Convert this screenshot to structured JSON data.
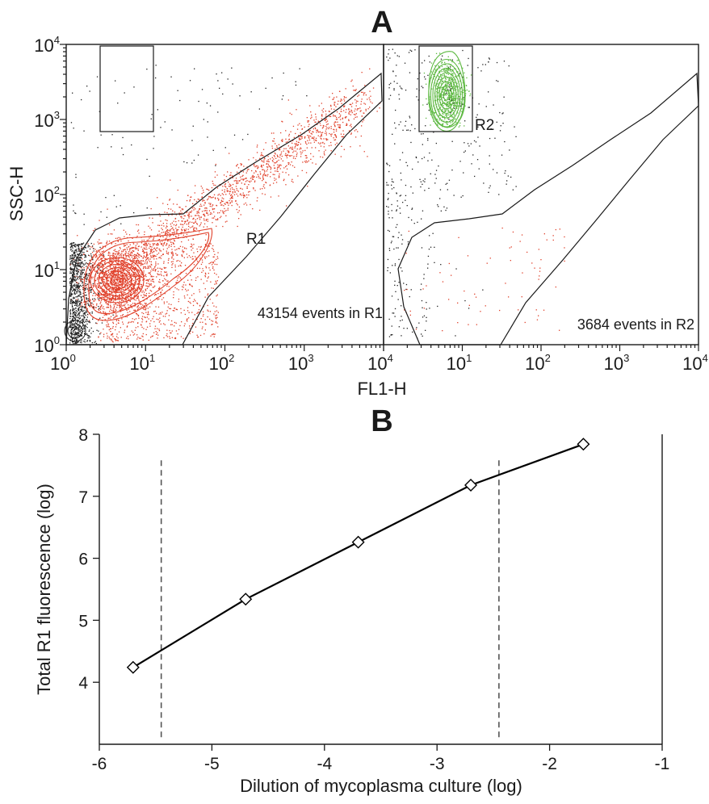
{
  "chart_data": [
    {
      "type": "scatter",
      "panel": "A",
      "ylabel": "SSC-H",
      "xlabel": "FL1-H",
      "scale": "log",
      "subplots": [
        {
          "name": "left",
          "xlim": [
            1,
            10000
          ],
          "ylim": [
            1,
            10000
          ],
          "x_ticks": [
            {
              "base": "10",
              "exp": "0"
            },
            {
              "base": "10",
              "exp": "1"
            },
            {
              "base": "10",
              "exp": "2"
            },
            {
              "base": "10",
              "exp": "3"
            },
            {
              "base": "10",
              "exp": "4"
            }
          ],
          "y_ticks": [
            {
              "base": "10",
              "exp": "0"
            },
            {
              "base": "10",
              "exp": "1"
            },
            {
              "base": "10",
              "exp": "2"
            },
            {
              "base": "10",
              "exp": "3"
            },
            {
              "base": "10",
              "exp": "4"
            }
          ],
          "gates": [
            {
              "name": "R1",
              "label": "R1",
              "label_at": [
                25,
                25
              ]
            },
            {
              "name": "R2-box",
              "label": "",
              "x": [
                2.5,
                12
              ],
              "y": [
                700,
                8500
              ]
            }
          ],
          "annotation": "43154 events in R1",
          "population_color": "#e0402a"
        },
        {
          "name": "right",
          "xlim": [
            1,
            10000
          ],
          "ylim": [
            1,
            10000
          ],
          "x_ticks": [
            {
              "base": "10",
              "exp": "1"
            },
            {
              "base": "10",
              "exp": "2"
            },
            {
              "base": "10",
              "exp": "3"
            },
            {
              "base": "10",
              "exp": "4"
            }
          ],
          "gates": [
            {
              "name": "R1",
              "label": ""
            },
            {
              "name": "R2",
              "label": "R2",
              "x": [
                2.5,
                12
              ],
              "y": [
                700,
                8500
              ]
            }
          ],
          "annotation": "3684 events in R2",
          "population_color": "#5cb840"
        }
      ]
    },
    {
      "type": "line",
      "panel": "B",
      "xlabel": "Dilution of mycoplasma culture (log)",
      "ylabel": "Total R1 fluorescence (log)",
      "xlim": [
        -6,
        -1
      ],
      "ylim": [
        3,
        8
      ],
      "x_ticks": [
        "-6",
        "-5",
        "-4",
        "-3",
        "-2",
        "-1"
      ],
      "y_ticks": [
        "4",
        "5",
        "6",
        "7",
        "8"
      ],
      "series": [
        {
          "x": [
            -5.7,
            -4.7,
            -3.7,
            -2.7,
            -1.7
          ],
          "y": [
            4.24,
            5.34,
            6.26,
            7.18,
            7.84
          ],
          "marker": "diamond"
        }
      ],
      "vlines": [
        -5.45,
        -2.45
      ],
      "vline_top": 7.58
    }
  ],
  "colors": {
    "axis": "#1a1a1a",
    "background_dots": "#222222",
    "r1_population": "#e0402a",
    "r2_population": "#5cb840",
    "line": "#000000",
    "vline": "#555555"
  }
}
